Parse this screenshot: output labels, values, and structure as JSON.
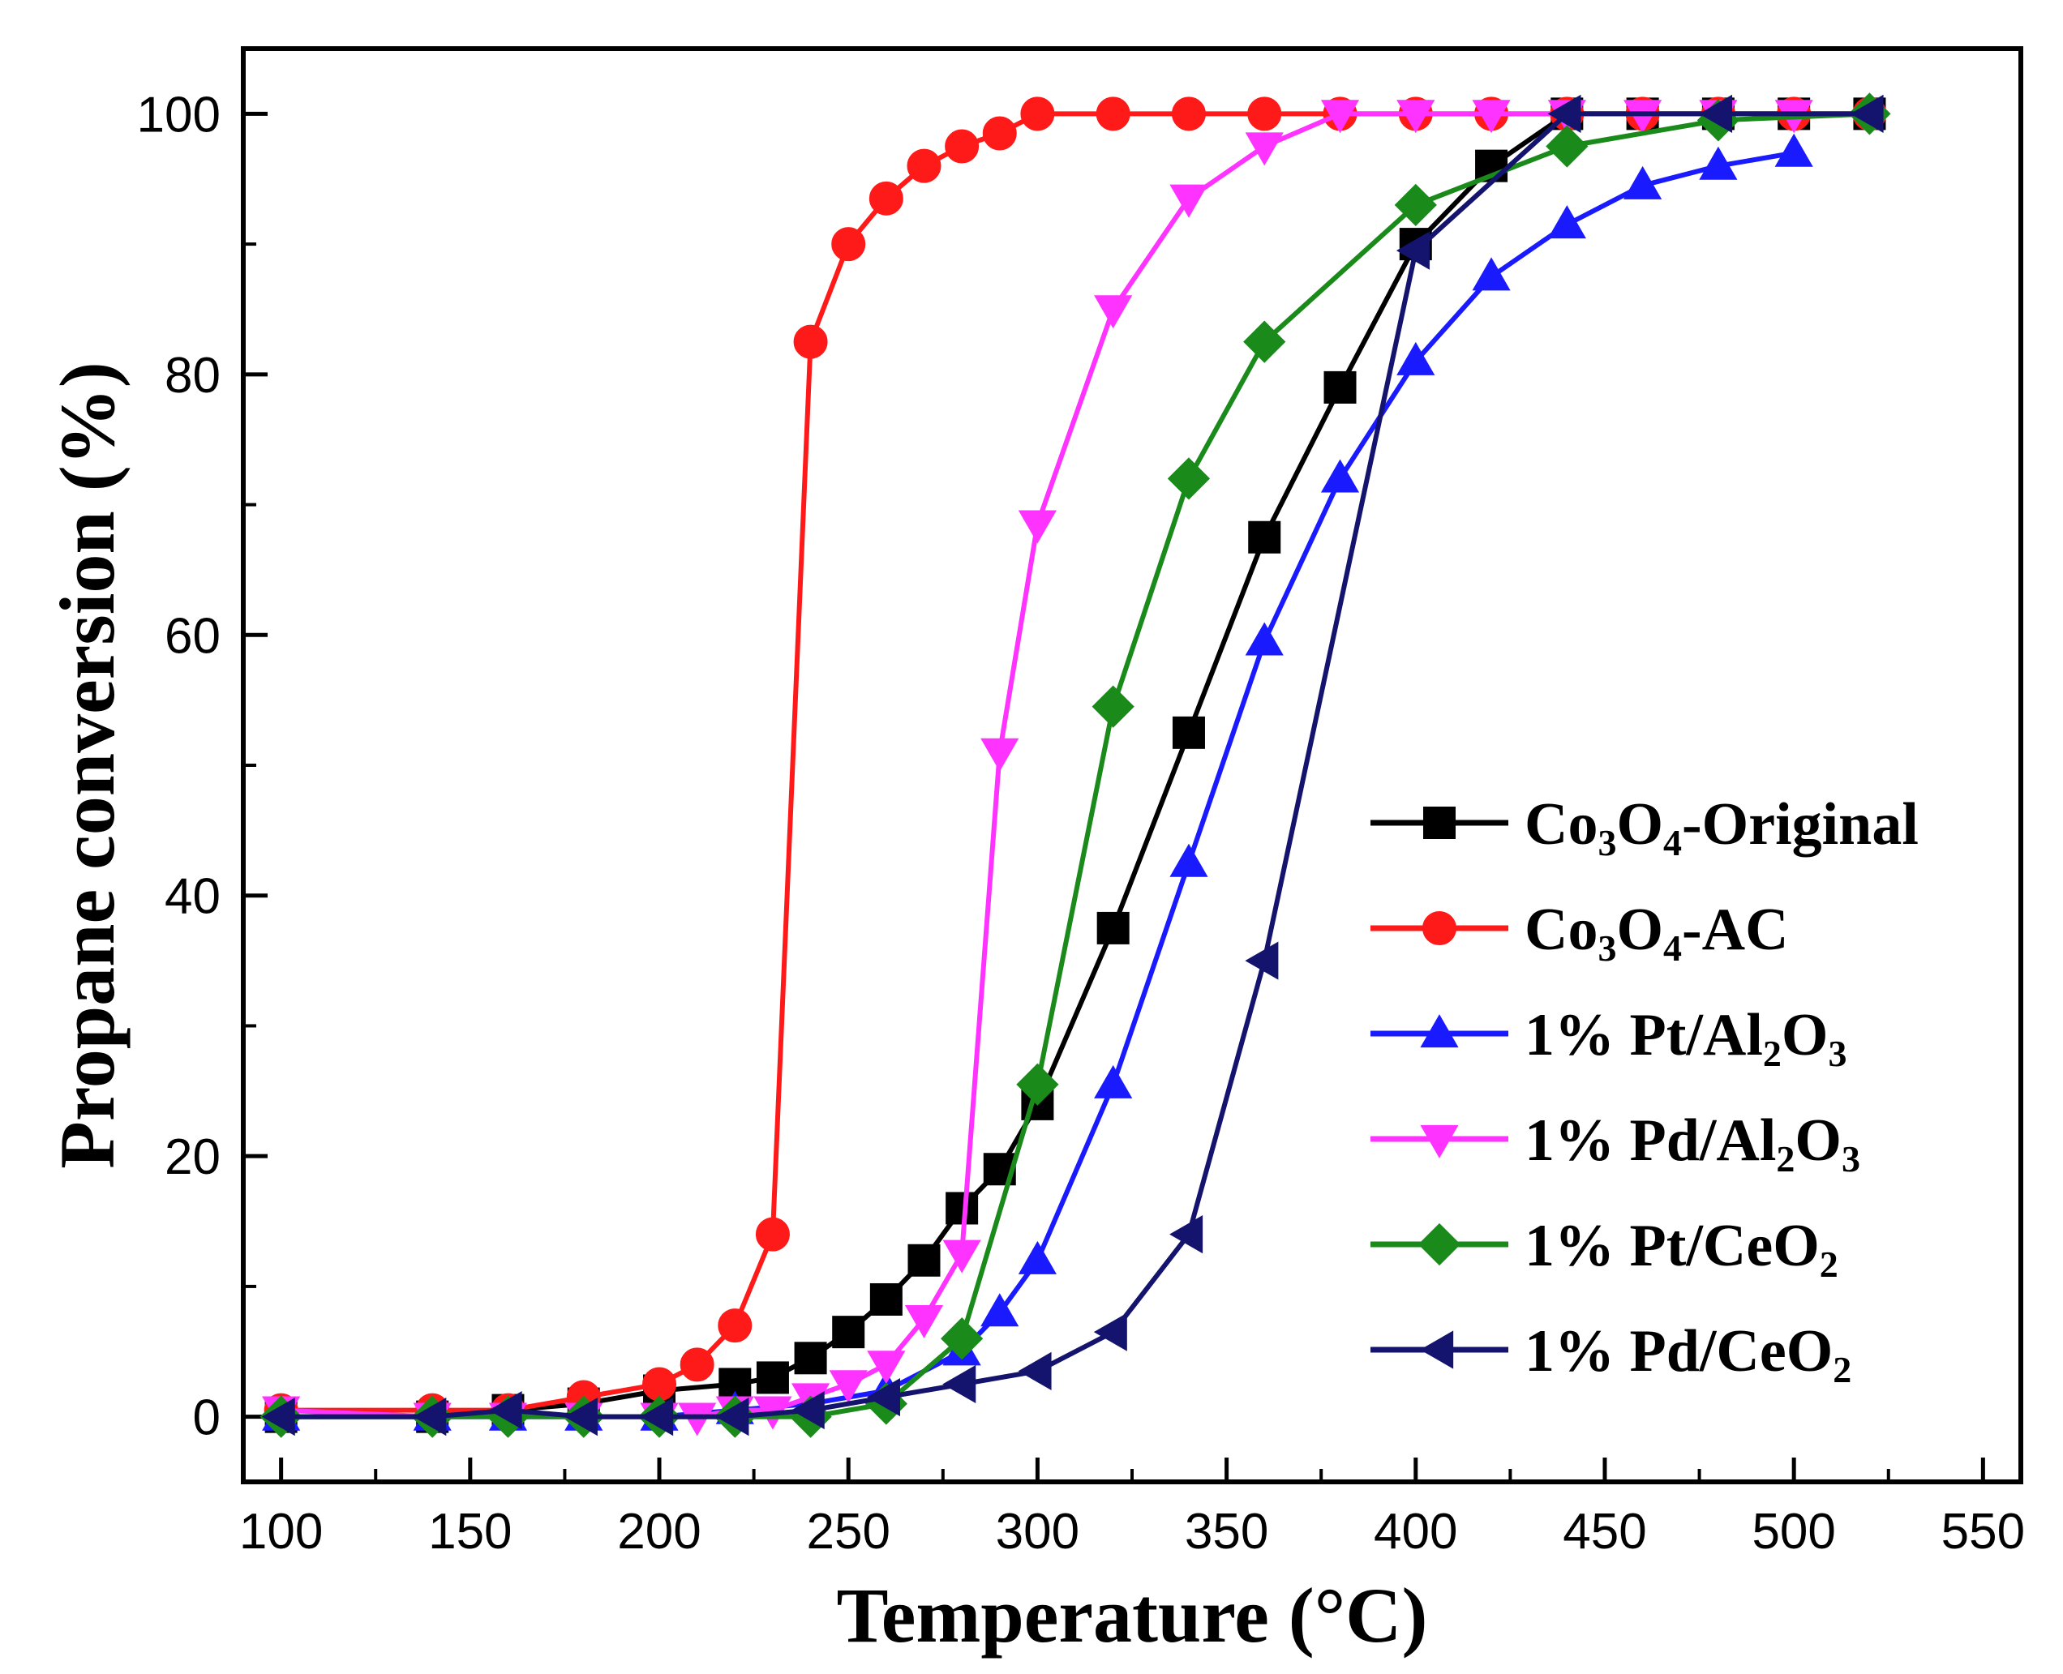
{
  "chart_data": {
    "type": "line",
    "title": "",
    "xlabel": "Temperature (°C)",
    "ylabel": "Propane conversion (%)",
    "xlim": [
      90,
      560
    ],
    "ylim": [
      -5,
      105
    ],
    "xticks": [
      100,
      150,
      200,
      250,
      300,
      350,
      400,
      450,
      500,
      550
    ],
    "yticks": [
      0,
      20,
      40,
      60,
      80,
      100
    ],
    "x_tick_labels": [
      "100",
      "150",
      "200",
      "250",
      "300",
      "350",
      "400",
      "450",
      "500",
      "550"
    ],
    "y_tick_labels": [
      "0",
      "20",
      "40",
      "60",
      "80",
      "100"
    ],
    "grid": false,
    "legend_position": "lower-right",
    "series": [
      {
        "name": "Co3O4-Original",
        "label_parts": [
          {
            "t": "Co"
          },
          {
            "t": "3",
            "sub": true
          },
          {
            "t": "O"
          },
          {
            "t": "4",
            "sub": true
          },
          {
            "t": "-Original"
          }
        ],
        "color": "#000000",
        "marker": "square",
        "x": [
          100,
          140,
          160,
          180,
          200,
          220,
          230,
          240,
          250,
          260,
          270,
          280,
          290,
          300,
          320,
          340,
          360,
          380,
          400,
          420,
          440,
          460,
          480,
          500,
          520
        ],
        "y": [
          0,
          0,
          0.5,
          1,
          2,
          2.5,
          3,
          4.5,
          6.5,
          9,
          12,
          16,
          19,
          24,
          37.5,
          52.5,
          67.5,
          79,
          90,
          96,
          100,
          100,
          100,
          100,
          100
        ]
      },
      {
        "name": "Co3O4-AC",
        "label_parts": [
          {
            "t": "Co"
          },
          {
            "t": "3",
            "sub": true
          },
          {
            "t": "O"
          },
          {
            "t": "4",
            "sub": true
          },
          {
            "t": "-AC"
          }
        ],
        "color": "#ff1a1a",
        "marker": "circle",
        "x": [
          100,
          140,
          160,
          180,
          200,
          210,
          220,
          230,
          240,
          250,
          260,
          270,
          280,
          290,
          300,
          320,
          340,
          360,
          380,
          400,
          420,
          440,
          460,
          480,
          500,
          520
        ],
        "y": [
          0.5,
          0.5,
          0.5,
          1.5,
          2.5,
          4,
          7,
          14,
          82.5,
          90,
          93.5,
          96,
          97.5,
          98.5,
          100,
          100,
          100,
          100,
          100,
          100,
          100,
          100,
          100,
          100,
          100,
          100
        ]
      },
      {
        "name": "1% Pt/Al2O3",
        "label_parts": [
          {
            "t": "1% Pt/Al"
          },
          {
            "t": "2",
            "sub": true
          },
          {
            "t": "O"
          },
          {
            "t": "3",
            "sub": true
          }
        ],
        "color": "#1a1aff",
        "marker": "triangle-up",
        "x": [
          100,
          140,
          160,
          180,
          200,
          220,
          240,
          260,
          280,
          290,
          300,
          320,
          340,
          360,
          380,
          400,
          420,
          440,
          460,
          480,
          500
        ],
        "y": [
          0,
          0,
          0,
          0,
          0,
          0.5,
          1,
          2,
          5,
          8,
          12,
          25.5,
          42.5,
          59.5,
          72,
          81,
          87.5,
          91.5,
          94.5,
          96,
          97
        ]
      },
      {
        "name": "1% Pd/Al2O3",
        "label_parts": [
          {
            "t": "1% Pd/Al"
          },
          {
            "t": "2",
            "sub": true
          },
          {
            "t": "O"
          },
          {
            "t": "3",
            "sub": true
          }
        ],
        "color": "#ff33ff",
        "marker": "triangle-down",
        "x": [
          100,
          140,
          160,
          180,
          200,
          210,
          220,
          230,
          240,
          250,
          260,
          270,
          280,
          290,
          300,
          320,
          340,
          360,
          380,
          400,
          420,
          440,
          460,
          480,
          500
        ],
        "y": [
          0.5,
          0,
          0,
          0,
          0,
          0,
          0.5,
          0.5,
          1.5,
          2.5,
          4,
          7.5,
          12.5,
          51,
          68.5,
          85,
          93.5,
          97.5,
          100,
          100,
          100,
          100,
          100,
          100,
          100
        ]
      },
      {
        "name": "1% Pt/CeO2",
        "label_parts": [
          {
            "t": "1% Pt/CeO"
          },
          {
            "t": "2",
            "sub": true
          }
        ],
        "color": "#1a8a1a",
        "marker": "diamond",
        "x": [
          100,
          140,
          160,
          180,
          200,
          220,
          240,
          260,
          280,
          300,
          320,
          340,
          360,
          400,
          440,
          480,
          520
        ],
        "y": [
          0,
          0,
          0,
          0,
          0,
          0,
          0,
          1,
          6,
          25.5,
          54.5,
          72,
          82.5,
          93,
          97.5,
          99.5,
          100
        ]
      },
      {
        "name": "1% Pd/CeO2",
        "label_parts": [
          {
            "t": "1% Pd/CeO"
          },
          {
            "t": "2",
            "sub": true
          }
        ],
        "color": "#14146e",
        "marker": "triangle-left",
        "x": [
          100,
          140,
          160,
          180,
          200,
          220,
          240,
          260,
          280,
          300,
          320,
          340,
          360,
          400,
          440,
          480,
          520
        ],
        "y": [
          0,
          0,
          0.5,
          0,
          0,
          0,
          0.5,
          1.5,
          2.5,
          3.5,
          6.5,
          14,
          35,
          89.5,
          100,
          100,
          100
        ]
      }
    ]
  }
}
